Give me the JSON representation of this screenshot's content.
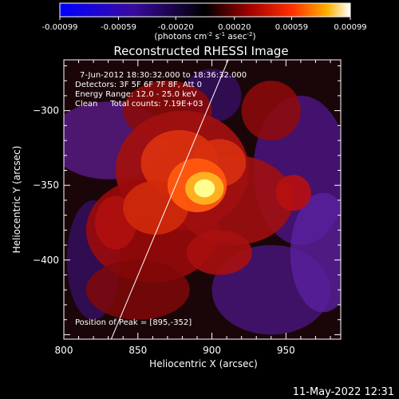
{
  "chart_data": {
    "type": "heatmap",
    "title": "Reconstructed RHESSI Image",
    "xlabel": "Heliocentric X (arcsec)",
    "ylabel": "Heliocentric Y (arcsec)",
    "xlim": [
      800,
      987
    ],
    "ylim": [
      -453,
      -266
    ],
    "x_ticks": [
      800,
      850,
      900,
      950
    ],
    "y_ticks": [
      -300,
      -350,
      -400
    ],
    "colorbar": {
      "range": [
        -0.00099,
        0.00099
      ],
      "ticks": [
        "-0.00099",
        "-0.00059",
        "-0.00020",
        "0.00020",
        "0.00059",
        "0.00099"
      ],
      "label_main": "(photons cm",
      "label_sup1": "-2",
      "label_mid1": " s",
      "label_sup2": "-1",
      "label_mid2": " asec",
      "label_sup3": "-2",
      "label_end": ")"
    },
    "annotations": [
      "7-Jun-2012 18:30:32.000 to 18:36:32.000",
      "Detectors: 3F 5F 6F 7F 8F, Att 0",
      "Energy Range: 12.0 - 25.0 keV",
      "Clean     Total counts: 7.19E+03"
    ],
    "peak_label": "Position of Peak = [895,-352]",
    "peak": [
      895,
      -352
    ],
    "limb_line": [
      [
        832,
        -453
      ],
      [
        911,
        -266
      ]
    ]
  },
  "timestamp": "11-May-2022 12:31"
}
